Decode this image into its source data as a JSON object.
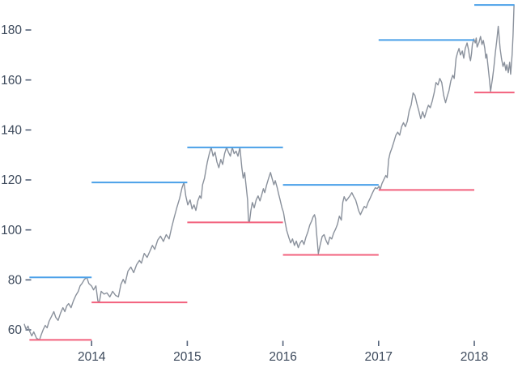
{
  "chart_data": {
    "type": "line",
    "title": "",
    "description": "Daily stock price line with yearly high (blue) and yearly low (red) horizontal range lines",
    "grid": false,
    "legend": false,
    "x_axis": {
      "label": "",
      "domain": [
        2013.25,
        2018.47
      ],
      "ticks": [
        {
          "label": "2014",
          "value": 2014
        },
        {
          "label": "2015",
          "value": 2015
        },
        {
          "label": "2016",
          "value": 2016
        },
        {
          "label": "2017",
          "value": 2017
        },
        {
          "label": "2018",
          "value": 2018
        }
      ]
    },
    "y_axis": {
      "label": "",
      "domain": [
        52,
        192
      ],
      "ticks": [
        {
          "label": "60",
          "value": 60
        },
        {
          "label": "80",
          "value": 80
        },
        {
          "label": "100",
          "value": 100
        },
        {
          "label": "120",
          "value": 120
        },
        {
          "label": "140",
          "value": 140
        },
        {
          "label": "160",
          "value": 160
        },
        {
          "label": "180",
          "value": 180
        }
      ]
    },
    "colors": {
      "price_line": "#8A919C",
      "high_line": "#4AA0E8",
      "low_line": "#F2617D",
      "axis_text": "#3D4A5C",
      "tick_mark": "#55637A",
      "background": "#FFFFFF"
    },
    "yearly_ranges": [
      {
        "year": "2013",
        "start": 2013.35,
        "end": 2014.0,
        "high": 81,
        "low": 56
      },
      {
        "year": "2014",
        "start": 2014.0,
        "end": 2015.0,
        "high": 119,
        "low": 71
      },
      {
        "year": "2015",
        "start": 2015.0,
        "end": 2016.0,
        "high": 133,
        "low": 103
      },
      {
        "year": "2016",
        "start": 2016.0,
        "end": 2017.0,
        "high": 118,
        "low": 90
      },
      {
        "year": "2017",
        "start": 2017.0,
        "end": 2018.0,
        "high": 176,
        "low": 116
      },
      {
        "year": "2018",
        "start": 2018.0,
        "end": 2018.42,
        "high": 190,
        "low": 155
      }
    ],
    "series": [
      {
        "name": "price",
        "points": [
          [
            2013.295,
            62.4
          ],
          [
            2013.315,
            60.2
          ],
          [
            2013.335,
            61.5
          ],
          [
            2013.355,
            59.2
          ],
          [
            2013.375,
            57.6
          ],
          [
            2013.395,
            59.2
          ],
          [
            2013.425,
            56.6
          ],
          [
            2013.455,
            56.0
          ],
          [
            2013.475,
            58.2
          ],
          [
            2013.495,
            60.2
          ],
          [
            2013.515,
            61.8
          ],
          [
            2013.535,
            60.8
          ],
          [
            2013.555,
            63.4
          ],
          [
            2013.585,
            65.7
          ],
          [
            2013.605,
            67.3
          ],
          [
            2013.625,
            65.0
          ],
          [
            2013.65,
            63.8
          ],
          [
            2013.675,
            66.7
          ],
          [
            2013.7,
            68.9
          ],
          [
            2013.72,
            67.3
          ],
          [
            2013.74,
            69.6
          ],
          [
            2013.76,
            70.5
          ],
          [
            2013.785,
            68.9
          ],
          [
            2013.81,
            71.6
          ],
          [
            2013.835,
            73.8
          ],
          [
            2013.86,
            75.4
          ],
          [
            2013.88,
            77.6
          ],
          [
            2013.9,
            78.6
          ],
          [
            2013.925,
            80.2
          ],
          [
            2013.95,
            81.0
          ],
          [
            2013.97,
            78.6
          ],
          [
            2014.0,
            77.5
          ],
          [
            2014.02,
            76.0
          ],
          [
            2014.045,
            77.6
          ],
          [
            2014.065,
            71.6
          ],
          [
            2014.08,
            71.0
          ],
          [
            2014.1,
            75.4
          ],
          [
            2014.13,
            74.3
          ],
          [
            2014.16,
            74.8
          ],
          [
            2014.19,
            73.2
          ],
          [
            2014.22,
            75.4
          ],
          [
            2014.25,
            73.8
          ],
          [
            2014.28,
            73.2
          ],
          [
            2014.305,
            78.1
          ],
          [
            2014.33,
            80.2
          ],
          [
            2014.35,
            78.6
          ],
          [
            2014.38,
            83.5
          ],
          [
            2014.41,
            85.1
          ],
          [
            2014.44,
            82.9
          ],
          [
            2014.47,
            86.1
          ],
          [
            2014.5,
            87.8
          ],
          [
            2014.52,
            86.7
          ],
          [
            2014.55,
            90.6
          ],
          [
            2014.58,
            89.0
          ],
          [
            2014.61,
            91.6
          ],
          [
            2014.635,
            93.8
          ],
          [
            2014.66,
            92.2
          ],
          [
            2014.69,
            95.9
          ],
          [
            2014.72,
            97.5
          ],
          [
            2014.75,
            95.4
          ],
          [
            2014.78,
            98.1
          ],
          [
            2014.81,
            96.4
          ],
          [
            2014.835,
            100.7
          ],
          [
            2014.86,
            104.6
          ],
          [
            2014.89,
            108.8
          ],
          [
            2014.92,
            112.6
          ],
          [
            2014.945,
            116.9
          ],
          [
            2014.965,
            119.0
          ],
          [
            2014.985,
            113.5
          ],
          [
            2015.005,
            110.0
          ],
          [
            2015.03,
            112.0
          ],
          [
            2015.05,
            108.4
          ],
          [
            2015.07,
            110.0
          ],
          [
            2015.09,
            107.8
          ],
          [
            2015.11,
            111.6
          ],
          [
            2015.13,
            113.6
          ],
          [
            2015.145,
            112.6
          ],
          [
            2015.16,
            118.1
          ],
          [
            2015.18,
            120.7
          ],
          [
            2015.195,
            124.0
          ],
          [
            2015.21,
            127.2
          ],
          [
            2015.23,
            130.5
          ],
          [
            2015.25,
            133.0
          ],
          [
            2015.27,
            129.5
          ],
          [
            2015.29,
            131.1
          ],
          [
            2015.31,
            127.2
          ],
          [
            2015.33,
            124.9
          ],
          [
            2015.35,
            128.2
          ],
          [
            2015.37,
            126.2
          ],
          [
            2015.39,
            130.5
          ],
          [
            2015.41,
            133.0
          ],
          [
            2015.43,
            131.1
          ],
          [
            2015.45,
            129.5
          ],
          [
            2015.47,
            133.0
          ],
          [
            2015.49,
            130.5
          ],
          [
            2015.51,
            131.5
          ],
          [
            2015.53,
            129.5
          ],
          [
            2015.55,
            133.0
          ],
          [
            2015.57,
            124.9
          ],
          [
            2015.585,
            120.7
          ],
          [
            2015.6,
            123.0
          ],
          [
            2015.615,
            117.5
          ],
          [
            2015.63,
            112.0
          ],
          [
            2015.64,
            103.6
          ],
          [
            2015.65,
            103.0
          ],
          [
            2015.665,
            107.8
          ],
          [
            2015.68,
            111.0
          ],
          [
            2015.7,
            108.8
          ],
          [
            2015.72,
            112.0
          ],
          [
            2015.74,
            113.6
          ],
          [
            2015.76,
            111.6
          ],
          [
            2015.78,
            114.3
          ],
          [
            2015.795,
            116.5
          ],
          [
            2015.81,
            114.9
          ],
          [
            2015.83,
            118.1
          ],
          [
            2015.85,
            120.7
          ],
          [
            2015.87,
            123.0
          ],
          [
            2015.89,
            120.1
          ],
          [
            2015.905,
            118.1
          ],
          [
            2015.92,
            119.7
          ],
          [
            2015.94,
            116.9
          ],
          [
            2015.955,
            114.3
          ],
          [
            2015.97,
            112.0
          ],
          [
            2015.99,
            108.8
          ],
          [
            2016.005,
            107.1
          ],
          [
            2016.02,
            103.6
          ],
          [
            2016.04,
            99.7
          ],
          [
            2016.06,
            97.1
          ],
          [
            2016.08,
            94.8
          ],
          [
            2016.1,
            96.4
          ],
          [
            2016.12,
            93.8
          ],
          [
            2016.14,
            95.5
          ],
          [
            2016.16,
            92.9
          ],
          [
            2016.18,
            94.8
          ],
          [
            2016.2,
            95.8
          ],
          [
            2016.22,
            94.2
          ],
          [
            2016.24,
            97.1
          ],
          [
            2016.26,
            99.1
          ],
          [
            2016.28,
            101.9
          ],
          [
            2016.3,
            103.6
          ],
          [
            2016.315,
            105.2
          ],
          [
            2016.33,
            106.1
          ],
          [
            2016.34,
            104.5
          ],
          [
            2016.35,
            99.1
          ],
          [
            2016.36,
            94.8
          ],
          [
            2016.37,
            90.5
          ],
          [
            2016.39,
            94.2
          ],
          [
            2016.41,
            97.4
          ],
          [
            2016.43,
            98.1
          ],
          [
            2016.45,
            95.8
          ],
          [
            2016.47,
            94.2
          ],
          [
            2016.49,
            97.1
          ],
          [
            2016.51,
            96.4
          ],
          [
            2016.53,
            98.7
          ],
          [
            2016.55,
            100.3
          ],
          [
            2016.57,
            102.3
          ],
          [
            2016.59,
            105.5
          ],
          [
            2016.61,
            103.9
          ],
          [
            2016.625,
            111.0
          ],
          [
            2016.64,
            113.3
          ],
          [
            2016.66,
            111.6
          ],
          [
            2016.68,
            112.6
          ],
          [
            2016.7,
            113.6
          ],
          [
            2016.72,
            114.9
          ],
          [
            2016.74,
            113.3
          ],
          [
            2016.76,
            112.0
          ],
          [
            2016.775,
            110.0
          ],
          [
            2016.79,
            107.8
          ],
          [
            2016.81,
            106.1
          ],
          [
            2016.83,
            107.8
          ],
          [
            2016.85,
            109.4
          ],
          [
            2016.87,
            108.8
          ],
          [
            2016.89,
            111.0
          ],
          [
            2016.91,
            112.6
          ],
          [
            2016.93,
            114.3
          ],
          [
            2016.95,
            115.9
          ],
          [
            2016.965,
            116.9
          ],
          [
            2016.985,
            116.5
          ],
          [
            2017.005,
            117.5
          ],
          [
            2017.015,
            116.0
          ],
          [
            2017.035,
            118.5
          ],
          [
            2017.055,
            120.2
          ],
          [
            2017.075,
            121.8
          ],
          [
            2017.09,
            120.9
          ],
          [
            2017.105,
            128.2
          ],
          [
            2017.12,
            130.8
          ],
          [
            2017.14,
            132.8
          ],
          [
            2017.16,
            135.3
          ],
          [
            2017.18,
            137.9
          ],
          [
            2017.2,
            139.1
          ],
          [
            2017.22,
            137.9
          ],
          [
            2017.24,
            141.3
          ],
          [
            2017.26,
            142.9
          ],
          [
            2017.28,
            141.3
          ],
          [
            2017.3,
            143.5
          ],
          [
            2017.32,
            147.7
          ],
          [
            2017.34,
            150.0
          ],
          [
            2017.36,
            154.8
          ],
          [
            2017.38,
            153.8
          ],
          [
            2017.4,
            150.5
          ],
          [
            2017.42,
            147.7
          ],
          [
            2017.44,
            144.5
          ],
          [
            2017.46,
            147.3
          ],
          [
            2017.48,
            145.0
          ],
          [
            2017.5,
            147.6
          ],
          [
            2017.52,
            149.9
          ],
          [
            2017.54,
            148.9
          ],
          [
            2017.56,
            151.5
          ],
          [
            2017.58,
            154.8
          ],
          [
            2017.6,
            159.0
          ],
          [
            2017.62,
            158.0
          ],
          [
            2017.64,
            160.6
          ],
          [
            2017.66,
            159.0
          ],
          [
            2017.68,
            153.8
          ],
          [
            2017.7,
            150.9
          ],
          [
            2017.72,
            153.8
          ],
          [
            2017.735,
            155.7
          ],
          [
            2017.755,
            159.6
          ],
          [
            2017.775,
            161.9
          ],
          [
            2017.79,
            160.6
          ],
          [
            2017.81,
            168.7
          ],
          [
            2017.825,
            170.9
          ],
          [
            2017.84,
            172.6
          ],
          [
            2017.855,
            170.0
          ],
          [
            2017.875,
            171.6
          ],
          [
            2017.89,
            168.7
          ],
          [
            2017.905,
            172.6
          ],
          [
            2017.925,
            174.8
          ],
          [
            2017.94,
            172.0
          ],
          [
            2017.95,
            169.4
          ],
          [
            2017.96,
            167.7
          ],
          [
            2017.97,
            170.3
          ],
          [
            2017.98,
            174.2
          ],
          [
            2017.995,
            176.4
          ],
          [
            2018.01,
            174.8
          ],
          [
            2018.02,
            176.8
          ],
          [
            2018.03,
            173.2
          ],
          [
            2018.05,
            175.1
          ],
          [
            2018.065,
            177.4
          ],
          [
            2018.08,
            174.2
          ],
          [
            2018.095,
            175.8
          ],
          [
            2018.11,
            172.6
          ],
          [
            2018.12,
            168.7
          ],
          [
            2018.13,
            170.3
          ],
          [
            2018.145,
            165.1
          ],
          [
            2018.16,
            159.6
          ],
          [
            2018.17,
            155.4
          ],
          [
            2018.19,
            160.6
          ],
          [
            2018.205,
            165.1
          ],
          [
            2018.22,
            170.9
          ],
          [
            2018.235,
            175.8
          ],
          [
            2018.25,
            181.5
          ],
          [
            2018.27,
            172.6
          ],
          [
            2018.285,
            168.4
          ],
          [
            2018.3,
            165.4
          ],
          [
            2018.315,
            167.1
          ],
          [
            2018.33,
            163.8
          ],
          [
            2018.34,
            166.1
          ],
          [
            2018.355,
            162.9
          ],
          [
            2018.37,
            167.1
          ],
          [
            2018.38,
            162.3
          ],
          [
            2018.395,
            170.0
          ],
          [
            2018.405,
            178.0
          ],
          [
            2018.415,
            190.0
          ]
        ]
      }
    ]
  }
}
